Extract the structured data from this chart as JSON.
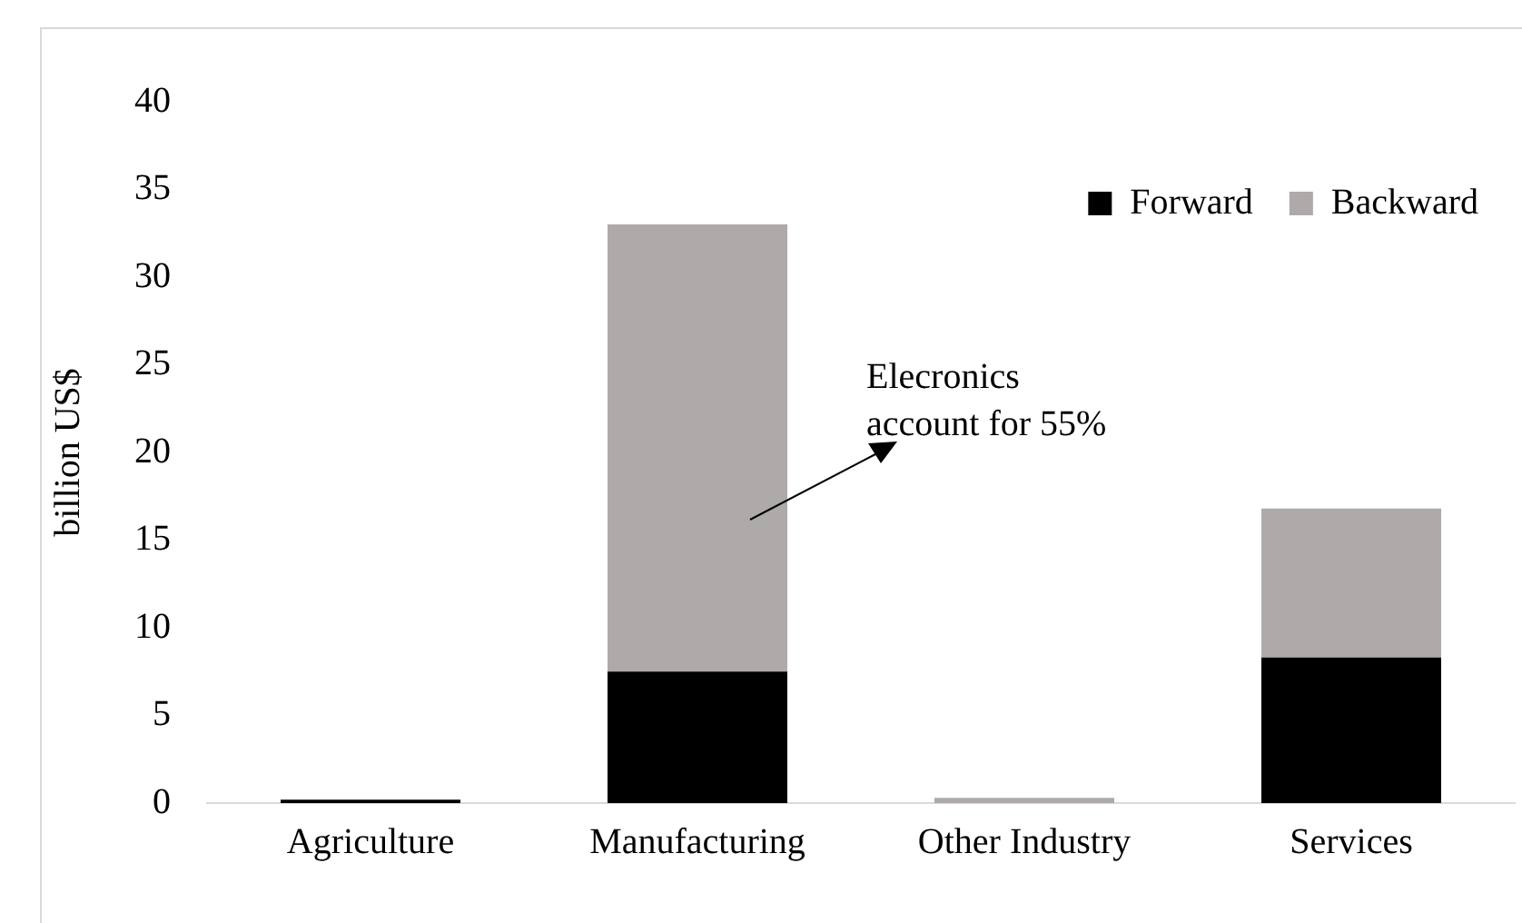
{
  "chart_data": {
    "type": "bar",
    "stacked": true,
    "ylabel": "billion US$",
    "categories": [
      "Agriculture",
      "Manufacturing",
      "Other Industry",
      "Services"
    ],
    "series": [
      {
        "name": "Forward",
        "color": "#000000",
        "values": [
          0.2,
          7.5,
          0,
          8.3
        ]
      },
      {
        "name": "Backward",
        "color": "#aeaaaa",
        "values": [
          null,
          25.5,
          0.3,
          8.5
        ]
      }
    ],
    "ylim": [
      0,
      40
    ],
    "yticks": [
      0,
      5,
      10,
      15,
      20,
      25,
      30,
      35,
      40
    ],
    "grid": false,
    "legend": "top right",
    "annotations": [
      "Elecronics\naccount for 55%"
    ]
  }
}
